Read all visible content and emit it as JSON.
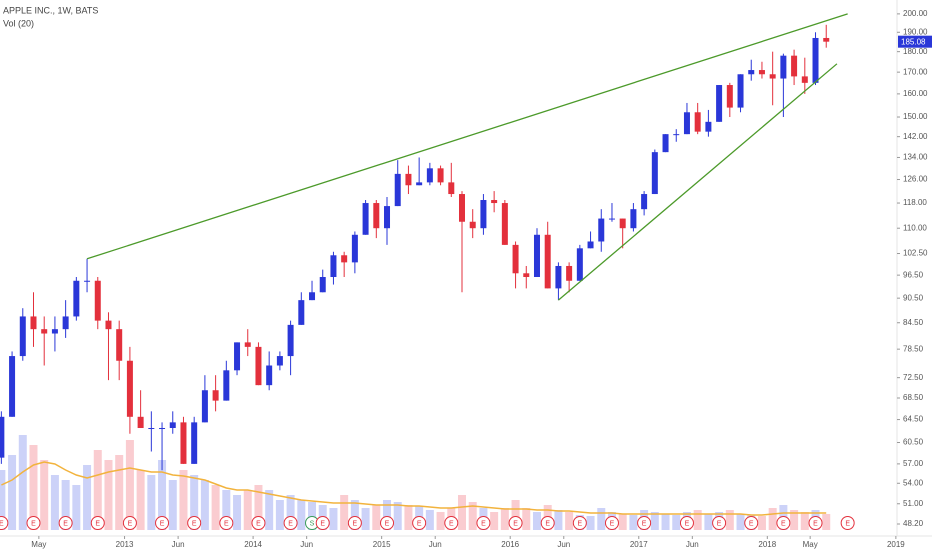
{
  "chart_data": {
    "type": "candlestick",
    "title": "APPLE INC., 1W, BATS",
    "volume_label": "Vol (20)",
    "log_scale": true,
    "up_color": "#2a37d8",
    "down_color": "#e3303c",
    "volume_up_color": "rgba(110,125,235,0.35)",
    "volume_down_color": "rgba(240,110,120,0.35)",
    "volume_ma_color": "#f2b33d",
    "last_price_color": "#2a37d8",
    "xlim": [
      "2012-01",
      "2019-03"
    ],
    "xticks": [
      {
        "value": "2012-05",
        "label": "May"
      },
      {
        "value": "2013-01",
        "label": "2013"
      },
      {
        "value": "2013-06",
        "label": "Jun"
      },
      {
        "value": "2014-01",
        "label": "2014"
      },
      {
        "value": "2014-06",
        "label": "Jun"
      },
      {
        "value": "2015-01",
        "label": "2015"
      },
      {
        "value": "2015-06",
        "label": "Jun"
      },
      {
        "value": "2016-01",
        "label": "2016"
      },
      {
        "value": "2016-06",
        "label": "Jun"
      },
      {
        "value": "2017-01",
        "label": "2017"
      },
      {
        "value": "2017-06",
        "label": "Jun"
      },
      {
        "value": "2018-01",
        "label": "2018"
      },
      {
        "value": "2018-05",
        "label": "May"
      },
      {
        "value": "2019-01",
        "label": "2019"
      }
    ],
    "ylim": [
      47.4,
      207.9
    ],
    "yticks": [
      {
        "value": 48.2,
        "label": "48.20"
      },
      {
        "value": 51,
        "label": "51.00"
      },
      {
        "value": 54,
        "label": "54.00"
      },
      {
        "value": 57,
        "label": "57.00"
      },
      {
        "value": 60.5,
        "label": "60.50"
      },
      {
        "value": 64.5,
        "label": "64.50"
      },
      {
        "value": 68.5,
        "label": "68.50"
      },
      {
        "value": 72.5,
        "label": "72.50"
      },
      {
        "value": 78.5,
        "label": "78.50"
      },
      {
        "value": 84.5,
        "label": "84.50"
      },
      {
        "value": 90.5,
        "label": "90.50"
      },
      {
        "value": 96.5,
        "label": "96.50"
      },
      {
        "value": 102.5,
        "label": "102.50"
      },
      {
        "value": 110,
        "label": "110.00"
      },
      {
        "value": 118,
        "label": "118.00"
      },
      {
        "value": 126,
        "label": "126.00"
      },
      {
        "value": 134,
        "label": "134.00"
      },
      {
        "value": 142,
        "label": "142.00"
      },
      {
        "value": 150,
        "label": "150.00"
      },
      {
        "value": 160,
        "label": "160.00"
      },
      {
        "value": 170,
        "label": "170.00"
      },
      {
        "value": 180,
        "label": "180.00"
      },
      {
        "value": 190,
        "label": "190.00"
      },
      {
        "value": 200,
        "label": "200.00"
      }
    ],
    "x": [
      "2012-01",
      "2012-02",
      "2012-03",
      "2012-04",
      "2012-05",
      "2012-06",
      "2012-07",
      "2012-08",
      "2012-09",
      "2012-10",
      "2012-11",
      "2012-12",
      "2013-01",
      "2013-02",
      "2013-03",
      "2013-04",
      "2013-05",
      "2013-06",
      "2013-07",
      "2013-08",
      "2013-09",
      "2013-10",
      "2013-11",
      "2013-12",
      "2014-01",
      "2014-02",
      "2014-03",
      "2014-04",
      "2014-05",
      "2014-06",
      "2014-07",
      "2014-08",
      "2014-09",
      "2014-10",
      "2014-11",
      "2014-12",
      "2015-01",
      "2015-02",
      "2015-03",
      "2015-04",
      "2015-05",
      "2015-06",
      "2015-07",
      "2015-08",
      "2015-09",
      "2015-10",
      "2015-11",
      "2015-12",
      "2016-01",
      "2016-02",
      "2016-03",
      "2016-04",
      "2016-05",
      "2016-06",
      "2016-07",
      "2016-08",
      "2016-09",
      "2016-10",
      "2016-11",
      "2016-12",
      "2017-01",
      "2017-02",
      "2017-03",
      "2017-04",
      "2017-05",
      "2017-06",
      "2017-07",
      "2017-08",
      "2017-09",
      "2017-10",
      "2017-11",
      "2017-12",
      "2018-01",
      "2018-02",
      "2018-03",
      "2018-04",
      "2018-05",
      "2018-06"
    ],
    "open": [
      58,
      65,
      77,
      86,
      83,
      82,
      83,
      86,
      95,
      95,
      85,
      83,
      76,
      65,
      63,
      63,
      63,
      64,
      57,
      64,
      70,
      68,
      74,
      80,
      79,
      71,
      75,
      77,
      84,
      90,
      92,
      96,
      102,
      100,
      108,
      118,
      110,
      117,
      128,
      124,
      125,
      130,
      125,
      121,
      112,
      110,
      119,
      118,
      105,
      97,
      96,
      108,
      93,
      99,
      95,
      104,
      106,
      113,
      113,
      110,
      116,
      121,
      136,
      143,
      143,
      152,
      144,
      148,
      164,
      154,
      169,
      171,
      169,
      167,
      178,
      168,
      165,
      187
    ],
    "high": [
      66,
      78,
      88,
      92,
      86,
      86,
      90,
      96,
      101,
      96,
      87,
      85,
      79,
      70,
      66,
      64,
      66,
      65,
      65,
      73,
      73,
      76,
      80,
      83,
      80,
      78,
      78,
      85,
      92,
      95,
      98,
      103,
      103,
      109,
      119,
      119,
      120,
      133,
      131,
      134,
      132,
      131,
      132,
      122,
      116,
      121,
      122,
      119,
      106,
      99,
      110,
      112,
      100,
      100,
      105,
      109,
      116,
      118,
      113,
      118,
      122,
      137,
      143,
      145,
      156,
      156,
      153,
      164,
      165,
      169,
      176,
      175,
      180,
      179,
      181,
      177,
      190,
      194
    ],
    "low": [
      57,
      65,
      76,
      79,
      75,
      78,
      81,
      85,
      92,
      83,
      72,
      72,
      62,
      63,
      59,
      56,
      62,
      57,
      57,
      64,
      66,
      68,
      73,
      77,
      71,
      70,
      74,
      73,
      84,
      90,
      92,
      94,
      96,
      97,
      108,
      107,
      105,
      117,
      121,
      124,
      124,
      124,
      120,
      92,
      107,
      108,
      115,
      105,
      93,
      93,
      96,
      93,
      90,
      92,
      95,
      104,
      103,
      112,
      104,
      109,
      114,
      121,
      136,
      140,
      143,
      143,
      142,
      148,
      150,
      152,
      166,
      167,
      155,
      150,
      164,
      160,
      164,
      182
    ],
    "close": [
      65,
      77,
      86,
      83,
      82,
      83,
      86,
      95,
      95,
      85,
      83,
      76,
      65,
      63,
      63,
      63,
      64,
      57,
      64,
      70,
      68,
      74,
      80,
      79,
      71,
      75,
      77,
      84,
      90,
      92,
      96,
      102,
      100,
      108,
      118,
      110,
      117,
      128,
      124,
      125,
      130,
      125,
      121,
      112,
      110,
      119,
      118,
      105,
      97,
      96,
      108,
      93,
      99,
      95,
      104,
      106,
      113,
      113,
      110,
      116,
      121,
      136,
      143,
      143,
      152,
      144,
      148,
      164,
      154,
      169,
      171,
      169,
      167,
      178,
      168,
      165,
      187,
      185.08
    ],
    "volume_ylim": [
      0,
      130
    ],
    "volume": [
      60,
      75,
      95,
      85,
      70,
      55,
      50,
      45,
      65,
      80,
      70,
      75,
      90,
      60,
      55,
      70,
      50,
      60,
      55,
      50,
      45,
      40,
      35,
      40,
      45,
      40,
      30,
      35,
      30,
      28,
      25,
      22,
      35,
      30,
      22,
      25,
      30,
      28,
      25,
      24,
      20,
      18,
      22,
      35,
      28,
      22,
      18,
      22,
      30,
      22,
      18,
      25,
      20,
      18,
      15,
      14,
      22,
      18,
      16,
      15,
      20,
      18,
      16,
      15,
      18,
      20,
      16,
      18,
      20,
      16,
      15,
      14,
      22,
      25,
      20,
      18,
      20,
      16
    ],
    "volume_ma": [
      45,
      50,
      58,
      65,
      68,
      66,
      60,
      55,
      52,
      55,
      58,
      60,
      62,
      60,
      58,
      58,
      55,
      54,
      52,
      50,
      46,
      42,
      40,
      40,
      38,
      36,
      34,
      32,
      30,
      29,
      28,
      27,
      27,
      27,
      26,
      25,
      25,
      25,
      24,
      24,
      23,
      22,
      22,
      23,
      24,
      23,
      22,
      21,
      21,
      21,
      20,
      20,
      19,
      19,
      18,
      17,
      17,
      17,
      16,
      16,
      16,
      16,
      16,
      16,
      16,
      16,
      16,
      16,
      16,
      16,
      15,
      15,
      16,
      17,
      17,
      17,
      17,
      17
    ],
    "trendlines": [
      {
        "color": "#4c9a2a",
        "x": [
          "2012-09",
          "2018-08"
        ],
        "y": [
          101,
          200
        ]
      },
      {
        "color": "#4c9a2a",
        "x": [
          "2016-05",
          "2018-07"
        ],
        "y": [
          90,
          174
        ]
      }
    ],
    "events": [
      {
        "x": "2012-01",
        "label": "E"
      },
      {
        "x": "2012-04",
        "label": "E"
      },
      {
        "x": "2012-07",
        "label": "E"
      },
      {
        "x": "2012-10",
        "label": "E"
      },
      {
        "x": "2013-01",
        "label": "E"
      },
      {
        "x": "2013-04",
        "label": "E"
      },
      {
        "x": "2013-07",
        "label": "E"
      },
      {
        "x": "2013-10",
        "label": "E"
      },
      {
        "x": "2014-01",
        "label": "E"
      },
      {
        "x": "2014-04",
        "label": "E"
      },
      {
        "x": "2014-06",
        "label": "S"
      },
      {
        "x": "2014-07",
        "label": "E"
      },
      {
        "x": "2014-10",
        "label": "E"
      },
      {
        "x": "2015-01",
        "label": "E"
      },
      {
        "x": "2015-04",
        "label": "E"
      },
      {
        "x": "2015-07",
        "label": "E"
      },
      {
        "x": "2015-10",
        "label": "E"
      },
      {
        "x": "2016-01",
        "label": "E"
      },
      {
        "x": "2016-04",
        "label": "E"
      },
      {
        "x": "2016-07",
        "label": "E"
      },
      {
        "x": "2016-10",
        "label": "E"
      },
      {
        "x": "2017-01",
        "label": "E"
      },
      {
        "x": "2017-05",
        "label": "E"
      },
      {
        "x": "2017-08",
        "label": "E"
      },
      {
        "x": "2017-11",
        "label": "E"
      },
      {
        "x": "2018-02",
        "label": "E"
      },
      {
        "x": "2018-05",
        "label": "E"
      },
      {
        "x": "2018-08",
        "label": "E"
      }
    ]
  }
}
